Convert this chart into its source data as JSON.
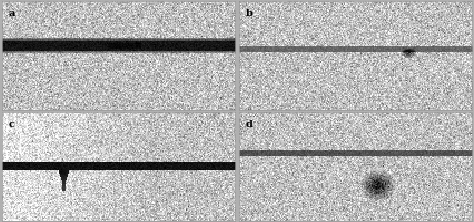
{
  "panels": [
    {
      "label": "a",
      "row": 0,
      "col": 0
    },
    {
      "label": "b",
      "row": 0,
      "col": 1
    },
    {
      "label": "c",
      "row": 1,
      "col": 0
    },
    {
      "label": "d",
      "row": 1,
      "col": 1
    }
  ],
  "fig_width": 4.74,
  "fig_height": 2.22,
  "dpi": 100,
  "bg_color": "#b0b0b0",
  "noise_seed": 42,
  "label_color": "#000000",
  "label_fontsize": 7,
  "border_color": "#999999"
}
